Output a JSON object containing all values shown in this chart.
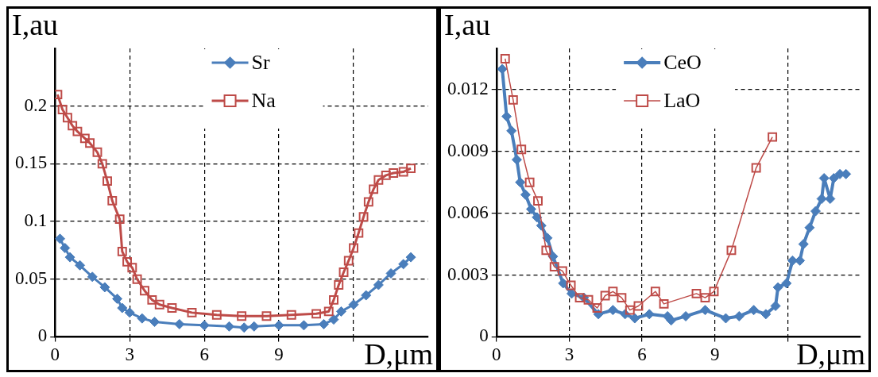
{
  "chart_data": [
    {
      "type": "line",
      "xlabel": "D,μm",
      "ylabel": "I,au",
      "xlim": [
        0,
        15
      ],
      "xticks": [
        0,
        3,
        6,
        9,
        {
          "value": 12,
          "label": null
        }
      ],
      "ylim": [
        0,
        0.25
      ],
      "yticks": [
        0,
        0.05,
        0.1,
        0.15,
        0.2
      ],
      "grid": true,
      "legend": "top",
      "series": [
        {
          "name": "Sr",
          "color": "#4a7ebb",
          "marker": "diamond",
          "x": [
            0.2,
            0.4,
            0.6,
            1.0,
            1.5,
            2.0,
            2.5,
            2.7,
            3.0,
            3.5,
            4.0,
            5.0,
            6.0,
            7.0,
            7.6,
            8.0,
            9.0,
            10.0,
            10.8,
            11.2,
            11.5,
            12.0,
            12.5,
            13.0,
            13.5,
            14.0,
            14.3
          ],
          "values": [
            0.085,
            0.077,
            0.069,
            0.062,
            0.052,
            0.043,
            0.033,
            0.025,
            0.021,
            0.016,
            0.013,
            0.011,
            0.01,
            0.009,
            0.008,
            0.009,
            0.01,
            0.01,
            0.011,
            0.015,
            0.022,
            0.028,
            0.036,
            0.045,
            0.055,
            0.063,
            0.069
          ]
        },
        {
          "name": "Na",
          "color": "#be4b48",
          "marker": "square",
          "x": [
            0.1,
            0.3,
            0.5,
            0.7,
            0.9,
            1.2,
            1.4,
            1.7,
            1.9,
            2.1,
            2.3,
            2.6,
            2.7,
            2.9,
            3.1,
            3.3,
            3.6,
            3.9,
            4.2,
            4.7,
            5.5,
            6.5,
            7.5,
            8.5,
            9.5,
            10.5,
            11.0,
            11.2,
            11.4,
            11.6,
            11.8,
            12.0,
            12.2,
            12.4,
            12.6,
            12.8,
            13.0,
            13.3,
            13.6,
            14.0,
            14.3
          ],
          "values": [
            0.21,
            0.197,
            0.19,
            0.183,
            0.178,
            0.172,
            0.168,
            0.16,
            0.15,
            0.135,
            0.118,
            0.102,
            0.074,
            0.065,
            0.06,
            0.05,
            0.04,
            0.032,
            0.028,
            0.025,
            0.021,
            0.019,
            0.018,
            0.018,
            0.019,
            0.02,
            0.022,
            0.032,
            0.045,
            0.056,
            0.066,
            0.077,
            0.09,
            0.104,
            0.117,
            0.128,
            0.136,
            0.14,
            0.142,
            0.143,
            0.146
          ]
        }
      ]
    },
    {
      "type": "line",
      "xlabel": "D,μm",
      "ylabel": "I,au",
      "xlim": [
        0,
        15
      ],
      "xticks": [
        0,
        3,
        6,
        9,
        {
          "value": 12,
          "label": null
        }
      ],
      "ylim": [
        0,
        0.014
      ],
      "yticks": [
        0,
        {
          "value": 0.003,
          "label": "0.003"
        },
        {
          "value": 0.006,
          "label": "0.006"
        },
        {
          "value": 0.009,
          "label": "0.009"
        },
        {
          "value": 0.012,
          "label": "0.012"
        }
      ],
      "grid": true,
      "legend": "top",
      "series": [
        {
          "name": "CeO",
          "color": "#4a7ebb",
          "marker": "diamond",
          "x": [
            0.24,
            0.42,
            0.62,
            0.84,
            0.98,
            1.2,
            1.43,
            1.67,
            1.85,
            2.1,
            2.33,
            2.75,
            3.1,
            3.6,
            4.2,
            4.8,
            5.3,
            5.7,
            6.3,
            7.05,
            7.2,
            7.8,
            8.6,
            9.45,
            10.0,
            10.6,
            11.1,
            11.5,
            11.6,
            11.95,
            12.2,
            12.5,
            12.65,
            12.9,
            13.15,
            13.4,
            13.5,
            13.75,
            13.9,
            14.15,
            14.4
          ],
          "values": [
            0.013,
            0.0107,
            0.01,
            0.0086,
            0.0075,
            0.0069,
            0.0062,
            0.0058,
            0.0054,
            0.0048,
            0.0039,
            0.0026,
            0.0021,
            0.0019,
            0.0011,
            0.0013,
            0.0011,
            0.0009,
            0.0011,
            0.001,
            0.0008,
            0.001,
            0.0013,
            0.0009,
            0.001,
            0.0013,
            0.0011,
            0.0015,
            0.0024,
            0.0026,
            0.0037,
            0.0037,
            0.0045,
            0.0053,
            0.0061,
            0.0067,
            0.0077,
            0.0067,
            0.0077,
            0.0079,
            0.0079
          ]
        },
        {
          "name": "LaO",
          "color": "#be4b48",
          "marker": "square",
          "x": [
            0.36,
            0.69,
            1.03,
            1.37,
            1.71,
            2.05,
            2.39,
            2.72,
            3.07,
            3.43,
            3.79,
            4.15,
            4.48,
            4.8,
            5.16,
            5.5,
            5.85,
            6.55,
            6.9,
            8.24,
            8.6,
            8.96,
            9.68,
            10.7,
            11.37
          ],
          "values": [
            0.0135,
            0.0115,
            0.0091,
            0.0075,
            0.0066,
            0.0042,
            0.0034,
            0.0032,
            0.0025,
            0.0019,
            0.0018,
            0.0014,
            0.002,
            0.0022,
            0.0019,
            0.0013,
            0.0015,
            0.0022,
            0.0016,
            0.0021,
            0.0019,
            0.0022,
            0.0042,
            0.0082,
            0.0097
          ]
        }
      ]
    }
  ]
}
